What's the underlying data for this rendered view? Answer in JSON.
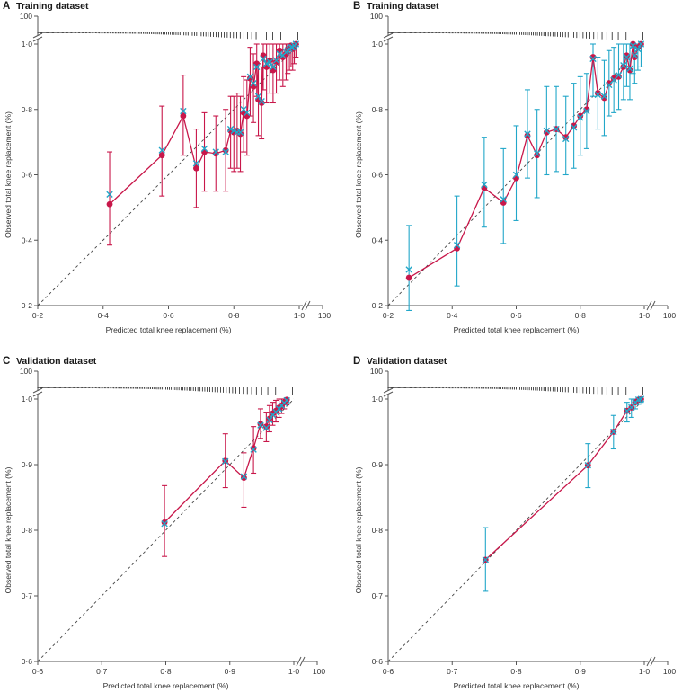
{
  "colors": {
    "observed": "#c8174a",
    "predicted": "#22a7c9",
    "observed_ci": "#c8174a",
    "predicted_ci": "#22a7c9",
    "axis": "#555555",
    "rug": "#000000"
  },
  "chart_data": [
    {
      "panel": "A",
      "type": "line",
      "title": "Training dataset",
      "xlabel": "Predicted total knee replacement (%)",
      "ylabel": "Observed total knee replacement (%)",
      "xlim": [
        0.2,
        1.0
      ],
      "ylim": [
        0.2,
        1.0
      ],
      "xticks": [
        "0·2",
        "0·4",
        "0·6",
        "0·8",
        "1·0"
      ],
      "yticks": [
        "0·2",
        "0·4",
        "0·6",
        "0·8",
        "1·0"
      ],
      "axis_break_label": "100",
      "ci_series": "observed",
      "reference_line": "diagonal",
      "series": [
        {
          "name": "observed",
          "marker": "circle",
          "x": [
            0.42,
            0.58,
            0.645,
            0.685,
            0.71,
            0.745,
            0.775,
            0.79,
            0.8,
            0.81,
            0.82,
            0.83,
            0.84,
            0.85,
            0.86,
            0.87,
            0.875,
            0.885,
            0.89,
            0.9,
            0.91,
            0.92,
            0.93,
            0.94,
            0.95,
            0.96,
            0.965,
            0.97,
            0.975,
            0.98,
            0.985,
            0.99
          ],
          "y": [
            0.51,
            0.66,
            0.78,
            0.62,
            0.67,
            0.665,
            0.675,
            0.735,
            0.73,
            0.735,
            0.725,
            0.79,
            0.78,
            0.895,
            0.87,
            0.94,
            0.83,
            0.82,
            0.965,
            0.93,
            0.95,
            0.92,
            0.945,
            0.98,
            0.96,
            0.97,
            0.985,
            0.99,
            0.995,
            0.985,
            0.99,
            1.0
          ],
          "lower": [
            0.385,
            0.535,
            0.66,
            0.5,
            0.55,
            0.55,
            0.55,
            0.62,
            0.61,
            0.62,
            0.61,
            0.67,
            0.66,
            0.78,
            0.76,
            0.84,
            0.72,
            0.71,
            0.86,
            0.82,
            0.85,
            0.82,
            0.85,
            0.89,
            0.87,
            0.89,
            0.91,
            0.92,
            0.93,
            0.92,
            0.94,
            0.96
          ],
          "upper": [
            0.67,
            0.81,
            0.905,
            0.74,
            0.79,
            0.78,
            0.8,
            0.84,
            0.84,
            0.85,
            0.84,
            0.9,
            0.89,
            0.99,
            0.97,
            1.0,
            0.94,
            0.93,
            1.0,
            1.0,
            1.0,
            1.0,
            1.0,
            1.0,
            1.0,
            1.0,
            1.0,
            1.0,
            1.0,
            1.0,
            1.0,
            1.0
          ]
        },
        {
          "name": "predicted",
          "marker": "x",
          "x": [
            0.42,
            0.58,
            0.645,
            0.685,
            0.71,
            0.745,
            0.775,
            0.79,
            0.8,
            0.81,
            0.82,
            0.83,
            0.84,
            0.85,
            0.86,
            0.87,
            0.875,
            0.885,
            0.89,
            0.9,
            0.91,
            0.92,
            0.93,
            0.94,
            0.95,
            0.96,
            0.965,
            0.97,
            0.975,
            0.98,
            0.985,
            0.99
          ],
          "y": [
            0.54,
            0.675,
            0.795,
            0.635,
            0.68,
            0.67,
            0.67,
            0.74,
            0.735,
            0.73,
            0.73,
            0.8,
            0.79,
            0.9,
            0.88,
            0.93,
            0.84,
            0.825,
            0.955,
            0.94,
            0.945,
            0.93,
            0.95,
            0.97,
            0.965,
            0.975,
            0.98,
            0.985,
            0.99,
            0.99,
            0.995,
            1.0
          ]
        }
      ]
    },
    {
      "panel": "B",
      "type": "line",
      "title": "Training dataset",
      "xlabel": "Predicted total knee replacement (%)",
      "ylabel": "Observed total knee replacement (%)",
      "xlim": [
        0.2,
        1.0
      ],
      "ylim": [
        0.2,
        1.0
      ],
      "xticks": [
        "0·2",
        "0·4",
        "0·6",
        "0·8",
        "1·0"
      ],
      "yticks": [
        "0·2",
        "0·4",
        "0·6",
        "0·8",
        "1·0"
      ],
      "axis_break_label": "100",
      "ci_series": "predicted",
      "reference_line": "diagonal",
      "series": [
        {
          "name": "observed",
          "marker": "circle",
          "x": [
            0.265,
            0.415,
            0.5,
            0.56,
            0.6,
            0.635,
            0.665,
            0.695,
            0.725,
            0.755,
            0.78,
            0.8,
            0.82,
            0.84,
            0.855,
            0.875,
            0.89,
            0.905,
            0.92,
            0.935,
            0.945,
            0.955,
            0.965,
            0.97,
            0.98,
            0.99
          ],
          "y": [
            0.285,
            0.375,
            0.56,
            0.515,
            0.59,
            0.72,
            0.66,
            0.73,
            0.74,
            0.715,
            0.75,
            0.78,
            0.8,
            0.96,
            0.85,
            0.835,
            0.88,
            0.895,
            0.9,
            0.93,
            0.965,
            0.92,
            1.0,
            0.96,
            0.99,
            1.0
          ],
          "lower": [
            0.185,
            0.26,
            0.44,
            0.39,
            0.46,
            0.59,
            0.53,
            0.6,
            0.61,
            0.6,
            0.62,
            0.66,
            0.68,
            0.84,
            0.74,
            0.72,
            0.78,
            0.79,
            0.8,
            0.83,
            0.87,
            0.83,
            0.91,
            0.88,
            0.92,
            0.93
          ],
          "upper": [
            0.445,
            0.535,
            0.715,
            0.68,
            0.75,
            0.86,
            0.8,
            0.87,
            0.87,
            0.84,
            0.88,
            0.9,
            0.91,
            1.0,
            0.96,
            0.95,
            0.98,
            0.99,
            1.0,
            1.0,
            1.0,
            1.0,
            1.0,
            1.0,
            1.0,
            1.0
          ]
        },
        {
          "name": "predicted",
          "marker": "x",
          "x": [
            0.265,
            0.415,
            0.5,
            0.56,
            0.6,
            0.635,
            0.665,
            0.695,
            0.725,
            0.755,
            0.78,
            0.8,
            0.82,
            0.84,
            0.855,
            0.875,
            0.89,
            0.905,
            0.92,
            0.935,
            0.945,
            0.955,
            0.965,
            0.97,
            0.98,
            0.99
          ],
          "y": [
            0.31,
            0.385,
            0.57,
            0.525,
            0.6,
            0.725,
            0.665,
            0.735,
            0.74,
            0.71,
            0.745,
            0.775,
            0.795,
            0.955,
            0.845,
            0.84,
            0.875,
            0.89,
            0.905,
            0.935,
            0.96,
            0.925,
            0.995,
            0.965,
            0.985,
            1.0
          ],
          "lower": [
            0.185,
            0.26,
            0.44,
            0.39,
            0.46,
            0.59,
            0.53,
            0.6,
            0.61,
            0.6,
            0.62,
            0.66,
            0.68,
            0.84,
            0.74,
            0.72,
            0.78,
            0.79,
            0.8,
            0.83,
            0.87,
            0.83,
            0.91,
            0.88,
            0.92,
            0.93
          ],
          "upper": [
            0.445,
            0.535,
            0.715,
            0.68,
            0.75,
            0.86,
            0.8,
            0.87,
            0.87,
            0.84,
            0.88,
            0.9,
            0.91,
            1.0,
            0.96,
            0.95,
            0.98,
            0.99,
            1.0,
            1.0,
            1.0,
            1.0,
            1.0,
            1.0,
            1.0,
            1.0
          ]
        }
      ]
    },
    {
      "panel": "C",
      "type": "line",
      "title": "Validation dataset",
      "xlabel": "Predicted total knee replacement (%)",
      "ylabel": "Observed total knee replacement (%)",
      "xlim": [
        0.6,
        1.0
      ],
      "ylim": [
        0.6,
        1.0
      ],
      "xticks": [
        "0·6",
        "0·7",
        "0·8",
        "0·9",
        "1·0"
      ],
      "yticks": [
        "0·6",
        "0·7",
        "0·8",
        "0·9",
        "1·0"
      ],
      "axis_break_label": "100",
      "ci_series": "observed",
      "reference_line": "diagonal",
      "series": [
        {
          "name": "observed",
          "marker": "circle",
          "x": [
            0.798,
            0.893,
            0.922,
            0.937,
            0.948,
            0.957,
            0.962,
            0.967,
            0.972,
            0.977,
            0.981,
            0.985,
            0.989
          ],
          "y": [
            0.812,
            0.906,
            0.88,
            0.925,
            0.962,
            0.958,
            0.97,
            0.978,
            0.982,
            0.987,
            0.99,
            0.995,
            0.999
          ],
          "lower": [
            0.76,
            0.865,
            0.835,
            0.887,
            0.94,
            0.935,
            0.95,
            0.96,
            0.965,
            0.972,
            0.978,
            0.985,
            0.991
          ],
          "upper": [
            0.868,
            0.947,
            0.918,
            0.958,
            0.985,
            0.98,
            0.99,
            0.995,
            0.998,
            1.0,
            1.0,
            1.0,
            1.0
          ]
        },
        {
          "name": "predicted",
          "marker": "x",
          "x": [
            0.798,
            0.893,
            0.922,
            0.937,
            0.948,
            0.957,
            0.962,
            0.967,
            0.972,
            0.977,
            0.981,
            0.985,
            0.989
          ],
          "y": [
            0.81,
            0.905,
            0.882,
            0.923,
            0.96,
            0.956,
            0.968,
            0.976,
            0.98,
            0.985,
            0.99,
            0.994,
            0.998
          ]
        }
      ]
    },
    {
      "panel": "D",
      "type": "line",
      "title": "Validation dataset",
      "xlabel": "Predicted total knee replacement (%)",
      "ylabel": "Observed total knee replacement (%)",
      "xlim": [
        0.6,
        1.0
      ],
      "ylim": [
        0.6,
        1.0
      ],
      "xticks": [
        "0·6",
        "0·7",
        "0·8",
        "0·9",
        "1·0"
      ],
      "yticks": [
        "0·6",
        "0·7",
        "0·8",
        "0·9",
        "1·0"
      ],
      "axis_break_label": "100",
      "ci_series": "predicted",
      "reference_line": "diagonal",
      "series": [
        {
          "name": "observed",
          "marker": "circle",
          "x": [
            0.752,
            0.912,
            0.952,
            0.973,
            0.98,
            0.986,
            0.991,
            0.995
          ],
          "y": [
            0.755,
            0.899,
            0.95,
            0.982,
            0.987,
            0.995,
            0.999,
            1.0
          ],
          "lower": [
            0.707,
            0.865,
            0.924,
            0.965,
            0.972,
            0.985,
            0.992,
            0.995
          ],
          "upper": [
            0.804,
            0.932,
            0.975,
            0.995,
            1.0,
            1.0,
            1.0,
            1.0
          ]
        },
        {
          "name": "predicted",
          "marker": "x",
          "x": [
            0.752,
            0.912,
            0.952,
            0.973,
            0.98,
            0.986,
            0.991,
            0.995
          ],
          "y": [
            0.755,
            0.899,
            0.95,
            0.982,
            0.987,
            0.995,
            0.999,
            1.0
          ],
          "lower": [
            0.707,
            0.865,
            0.924,
            0.965,
            0.972,
            0.985,
            0.992,
            0.995
          ],
          "upper": [
            0.804,
            0.932,
            0.975,
            0.995,
            1.0,
            1.0,
            1.0,
            1.0
          ]
        }
      ]
    }
  ]
}
